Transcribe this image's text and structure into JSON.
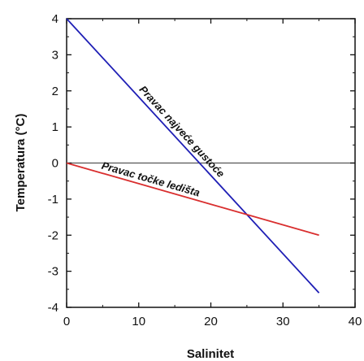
{
  "chart_data": {
    "type": "line",
    "xlabel": "Salinitet",
    "ylabel": "Temperatura (°C)",
    "xlim": [
      0,
      40
    ],
    "ylim": [
      -4,
      4
    ],
    "x_ticks": [
      0,
      10,
      20,
      30,
      40
    ],
    "y_ticks": [
      4,
      3,
      2,
      1,
      0,
      -1,
      -2,
      -3,
      -4
    ],
    "reference_line": {
      "y": 0,
      "color": "#555555"
    },
    "series": [
      {
        "name": "Pravac najveće gustoće",
        "color": "#1f1fb5",
        "x": [
          0,
          35
        ],
        "y": [
          4,
          -3.6
        ]
      },
      {
        "name": "Pravac točke ledišta",
        "color": "#d92e2e",
        "x": [
          0,
          35
        ],
        "y": [
          0,
          -2.0
        ]
      }
    ]
  }
}
